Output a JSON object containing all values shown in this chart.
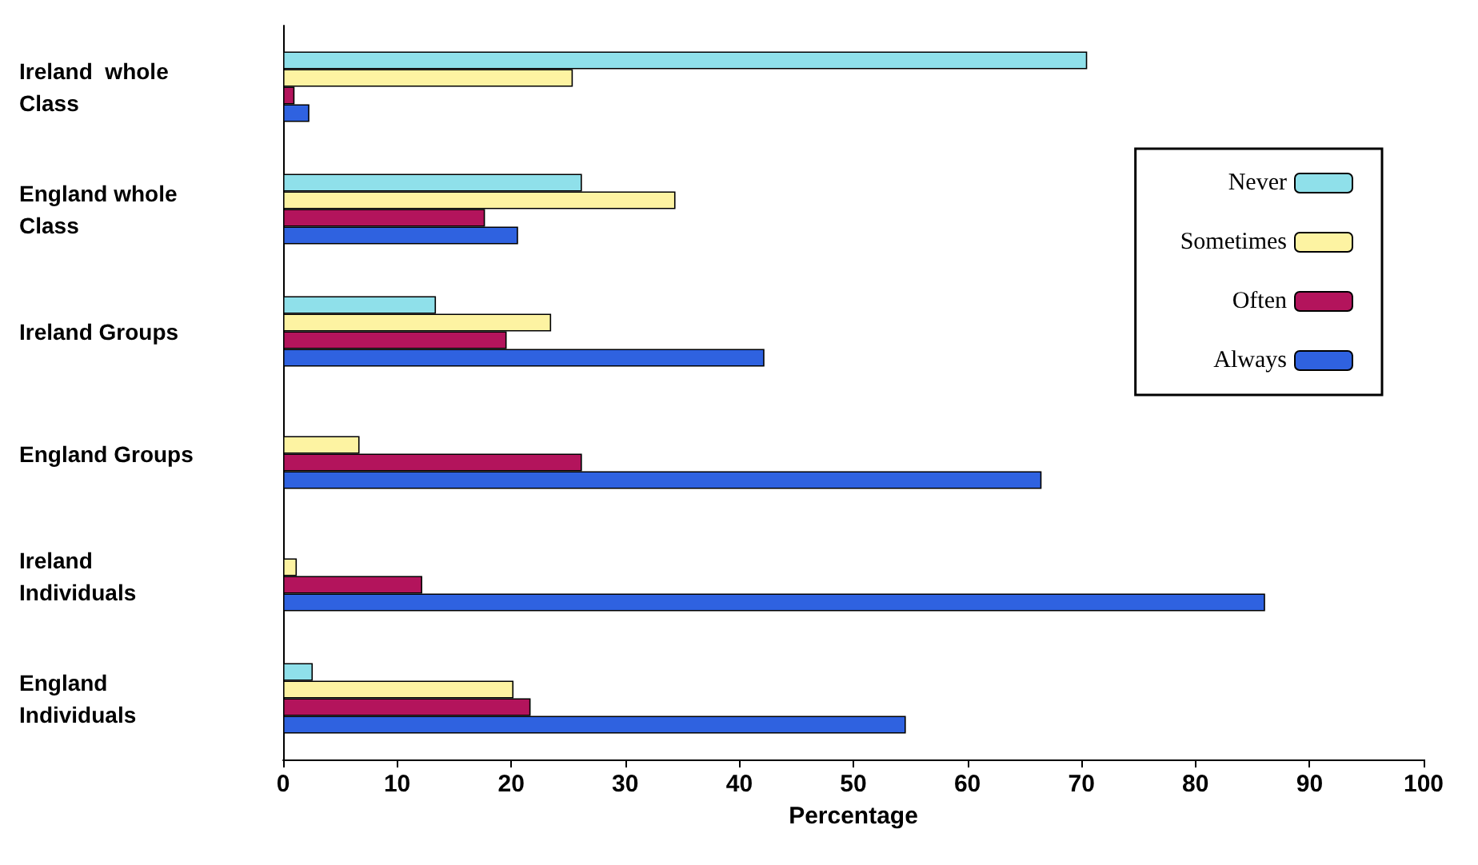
{
  "chart_data": {
    "type": "bar",
    "orientation": "horizontal",
    "xlabel": "Percentage",
    "categories": [
      "Ireland  whole\nClass",
      "England whole\nClass",
      "Ireland Groups",
      "England Groups",
      "Ireland\nIndividuals",
      "England\nIndividuals"
    ],
    "series": [
      {
        "name": "Never",
        "color": "#8fe0ea",
        "values": [
          70.5,
          26.2,
          13.4,
          null,
          null,
          2.6
        ]
      },
      {
        "name": "Sometimes",
        "color": "#fdf3a2",
        "values": [
          25.4,
          34.4,
          23.5,
          6.7,
          1.2,
          20.2
        ]
      },
      {
        "name": "Often",
        "color": "#b3145c",
        "values": [
          1,
          17.7,
          19.6,
          26.2,
          12.2,
          21.7
        ]
      },
      {
        "name": "Always",
        "color": "#2f62e0",
        "values": [
          2.3,
          20.6,
          42.2,
          66.5,
          86.1,
          54.6
        ]
      }
    ],
    "xlim": [
      0,
      100
    ],
    "xticks": [
      0,
      10,
      20,
      30,
      40,
      50,
      60,
      70,
      80,
      90,
      100
    ],
    "grid": false,
    "legend": "right"
  }
}
